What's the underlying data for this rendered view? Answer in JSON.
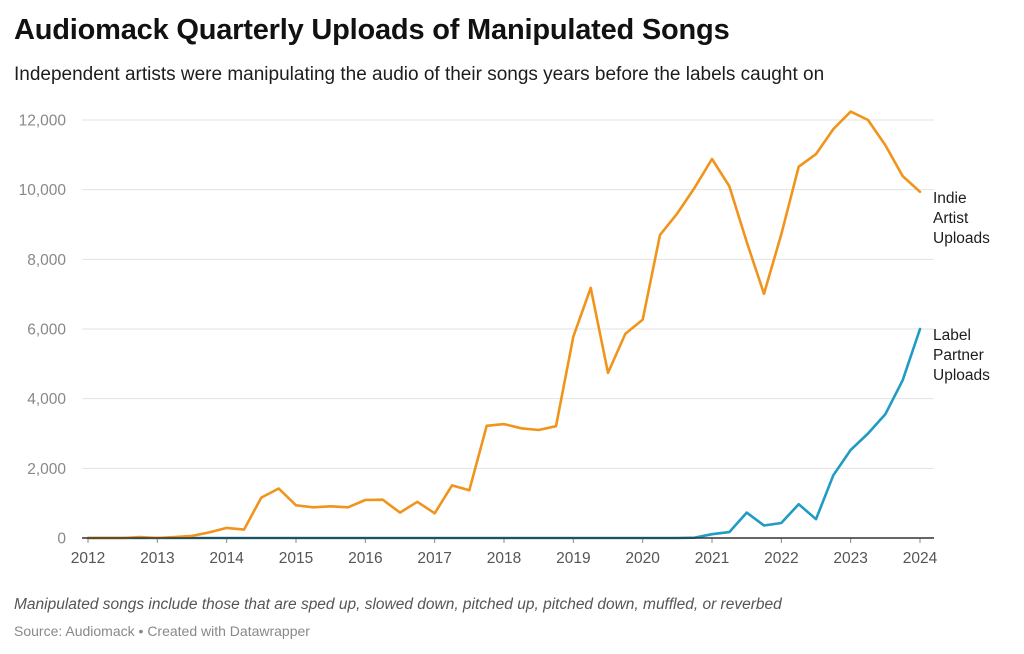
{
  "header": {
    "title": "Audiomack Quarterly Uploads of Manipulated Songs",
    "subtitle": "Independent artists were manipulating the audio of their songs years before the labels caught on"
  },
  "footer": {
    "note": "Manipulated songs include those that are sped up, slowed down, pitched up, pitched down, muffled, or reverbed",
    "source": "Source: Audiomack",
    "credit": "Created with Datawrapper",
    "separator": "•"
  },
  "colors": {
    "indie": "#f0941c",
    "label": "#1f9bc4",
    "grid": "#e2e2e2",
    "axis": "#333333"
  },
  "chart_data": {
    "type": "line",
    "title": "Audiomack Quarterly Uploads of Manipulated Songs",
    "xlabel": "",
    "ylabel": "",
    "xlim": [
      2012,
      2024
    ],
    "ylim": [
      0,
      12000
    ],
    "y_ticks": [
      0,
      2000,
      4000,
      6000,
      8000,
      10000,
      12000
    ],
    "y_tick_labels": [
      "0",
      "2,000",
      "4,000",
      "6,000",
      "8,000",
      "10,000",
      "12,000"
    ],
    "x_ticks": [
      2012,
      2013,
      2014,
      2015,
      2016,
      2017,
      2018,
      2019,
      2020,
      2021,
      2022,
      2023,
      2024
    ],
    "x_tick_labels": [
      "2012",
      "2013",
      "2014",
      "2015",
      "2016",
      "2017",
      "2018",
      "2019",
      "2020",
      "2021",
      "2022",
      "2023",
      "2024"
    ],
    "grid": true,
    "series": [
      {
        "name": "Indie Artist Uploads",
        "label_lines": [
          "Indie",
          "Artist",
          "Uploads"
        ],
        "color": "#f0941c",
        "x": [
          2012,
          2012.25,
          2012.5,
          2012.75,
          2013,
          2013.25,
          2013.5,
          2013.75,
          2014,
          2014.25,
          2014.5,
          2014.75,
          2015,
          2015.25,
          2015.5,
          2015.75,
          2016,
          2016.25,
          2016.5,
          2016.75,
          2017,
          2017.25,
          2017.5,
          2017.75,
          2018,
          2018.25,
          2018.5,
          2018.75,
          2019,
          2019.25,
          2019.5,
          2019.75,
          2020,
          2020.25,
          2020.5,
          2020.75,
          2021,
          2021.25,
          2021.5,
          2021.75,
          2022,
          2022.25,
          2022.5,
          2022.75,
          2023,
          2023.25,
          2023.5,
          2023.75,
          2024
        ],
        "values": [
          0,
          0,
          0,
          30,
          0,
          30,
          60,
          160,
          290,
          240,
          1160,
          1420,
          940,
          880,
          910,
          880,
          1090,
          1100,
          730,
          1040,
          710,
          1510,
          1370,
          3220,
          3270,
          3150,
          3100,
          3210,
          5780,
          7180,
          4740,
          5860,
          6270,
          8700,
          9320,
          10060,
          10880,
          10100,
          8500,
          7010,
          8720,
          10660,
          11020,
          11740,
          12240,
          12000,
          11280,
          10390,
          9940
        ]
      },
      {
        "name": "Label Partner Uploads",
        "label_lines": [
          "Label",
          "Partner",
          "Uploads"
        ],
        "color": "#1f9bc4",
        "x": [
          2012,
          2012.25,
          2012.5,
          2012.75,
          2013,
          2013.25,
          2013.5,
          2013.75,
          2014,
          2014.25,
          2014.5,
          2014.75,
          2015,
          2015.25,
          2015.5,
          2015.75,
          2016,
          2016.25,
          2016.5,
          2016.75,
          2017,
          2017.25,
          2017.5,
          2017.75,
          2018,
          2018.25,
          2018.5,
          2018.75,
          2019,
          2019.25,
          2019.5,
          2019.75,
          2020,
          2020.25,
          2020.5,
          2020.75,
          2021,
          2021.25,
          2021.5,
          2021.75,
          2022,
          2022.25,
          2022.5,
          2022.75,
          2023,
          2023.25,
          2023.5,
          2023.75,
          2024
        ],
        "values": [
          0,
          0,
          0,
          0,
          0,
          0,
          0,
          0,
          0,
          0,
          0,
          0,
          0,
          0,
          0,
          0,
          0,
          0,
          0,
          0,
          0,
          0,
          0,
          0,
          0,
          0,
          0,
          0,
          0,
          0,
          0,
          0,
          0,
          0,
          0,
          10,
          110,
          170,
          730,
          360,
          430,
          970,
          540,
          1800,
          2530,
          3000,
          3550,
          4530,
          6000
        ]
      }
    ]
  }
}
